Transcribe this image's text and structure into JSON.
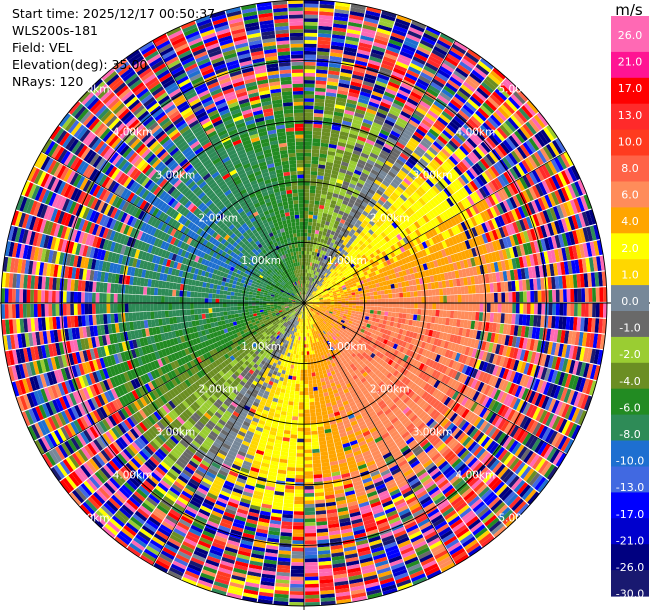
{
  "chart_data": {
    "type": "heatmap",
    "title": "",
    "info": {
      "start_time": "Start time: 2025/12/17 00:50:37",
      "instrument": "WLS200s-181",
      "field": "Field: VEL",
      "elevation": "Elevation(deg): 35.00",
      "nrays": "NRays: 120"
    },
    "range_rings_km": [
      1.0,
      2.0,
      3.0,
      4.0,
      5.0
    ],
    "ring_labels": [
      "1.00km",
      "2.00km",
      "3.00km",
      "4.00km",
      "5.00km"
    ],
    "colorbar": {
      "unit": "m/s",
      "ticks": [
        "26.0",
        "21.0",
        "17.0",
        "13.0",
        "10.0",
        "8.0",
        "6.0",
        "4.0",
        "2.0",
        "1.0",
        "0.0",
        "-1.0",
        "-2.0",
        "-4.0",
        "-6.0",
        "-8.0",
        "-10.0",
        "-13.0",
        "-17.0",
        "-21.0",
        "-26.0",
        "-30.0"
      ],
      "bins": [
        {
          "color": "#ff69b4",
          "low": 21,
          "high": 26
        },
        {
          "color": "#ff1493",
          "low": 21,
          "high": 26
        },
        {
          "color": "#ff0000",
          "low": 17,
          "high": 21
        },
        {
          "color": "#ff2a2a",
          "low": 13,
          "high": 17
        },
        {
          "color": "#ff3b1f",
          "low": 10,
          "high": 13
        },
        {
          "color": "#ff6347",
          "low": 8,
          "high": 10
        },
        {
          "color": "#ff8c5a",
          "low": 6,
          "high": 8
        },
        {
          "color": "#ffa500",
          "low": 4,
          "high": 6
        },
        {
          "color": "#ffff00",
          "low": 2,
          "high": 4
        },
        {
          "color": "#ffd700",
          "low": 1,
          "high": 2
        },
        {
          "color": "#778899",
          "low": 0,
          "high": 1
        },
        {
          "color": "#696969",
          "low": -1,
          "high": 0
        },
        {
          "color": "#9acd32",
          "low": -2,
          "high": -1
        },
        {
          "color": "#6b8e23",
          "low": -4,
          "high": -2
        },
        {
          "color": "#228b22",
          "low": -6,
          "high": -4
        },
        {
          "color": "#2e8b57",
          "low": -8,
          "high": -6
        },
        {
          "color": "#1e6fd0",
          "low": -10,
          "high": -8
        },
        {
          "color": "#4169e1",
          "low": -13,
          "high": -10
        },
        {
          "color": "#0000ff",
          "low": -17,
          "high": -13
        },
        {
          "color": "#0000cd",
          "low": -21,
          "high": -17
        },
        {
          "color": "#000080",
          "low": -26,
          "high": -21
        },
        {
          "color": "#191970",
          "low": -30,
          "high": -26
        }
      ]
    },
    "pattern": {
      "positive_direction_deg": 120,
      "max_speed": 8,
      "clean_range_km": 2.8,
      "noisy_range_km": 3.4,
      "max_range_km": 5.0
    }
  }
}
